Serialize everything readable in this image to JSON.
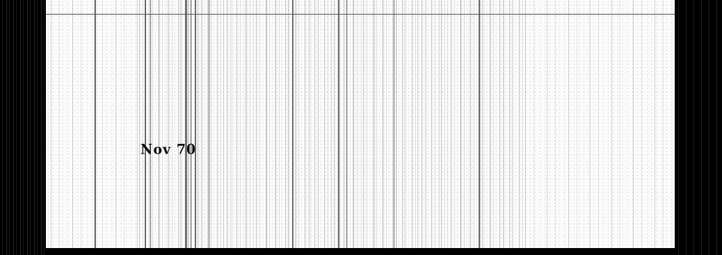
{
  "document": {
    "date_stamp": "Nov 70"
  }
}
